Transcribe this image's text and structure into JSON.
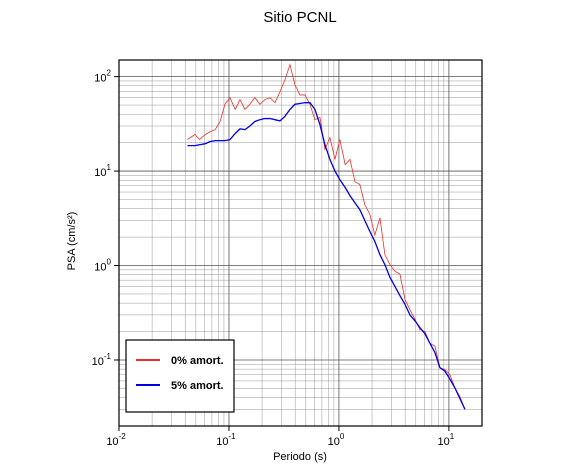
{
  "chart_data": {
    "type": "line",
    "title": "Sitio PCNL",
    "x_label": "Periodo (s)",
    "y_label": "PSA (cm/s²)",
    "log_x": true,
    "log_y": true,
    "grid": true,
    "legend": "lower left",
    "xlim": [
      0.01,
      20
    ],
    "ylim": [
      0.02,
      150
    ],
    "xticks": [
      {
        "value": 0.01,
        "label": "10",
        "exponent": "-2"
      },
      {
        "value": 0.1,
        "label": "10",
        "exponent": "-1"
      },
      {
        "value": 1,
        "label": "10",
        "exponent": "0"
      },
      {
        "value": 10,
        "label": "10",
        "exponent": "1"
      }
    ],
    "yticks": [
      {
        "value": 0.1,
        "label": "10",
        "exponent": "-1"
      },
      {
        "value": 1,
        "label": "10",
        "exponent": "0"
      },
      {
        "value": 10,
        "label": "10",
        "exponent": "1"
      },
      {
        "value": 100,
        "label": "10",
        "exponent": "2"
      }
    ],
    "x": [
      0.042,
      0.049,
      0.054,
      0.061,
      0.067,
      0.075,
      0.083,
      0.092,
      0.102,
      0.114,
      0.126,
      0.14,
      0.155,
      0.172,
      0.191,
      0.212,
      0.236,
      0.262,
      0.291,
      0.323,
      0.359,
      0.398,
      0.442,
      0.491,
      0.545,
      0.605,
      0.672,
      0.746,
      0.828,
      0.92,
      1.02,
      1.14,
      1.26,
      1.4,
      1.55,
      1.72,
      1.91,
      2.12,
      2.36,
      2.62,
      2.91,
      3.23,
      3.59,
      3.98,
      4.42,
      4.91,
      5.45,
      6.05,
      6.72,
      7.46,
      8.28,
      9.2,
      10.2,
      11.4,
      12.6,
      14.0
    ],
    "series": [
      {
        "name": "0% amort.",
        "color": "#e8302b",
        "width": 0.8,
        "values": [
          21.6,
          24.4,
          21.6,
          24.4,
          26,
          27.5,
          33.5,
          51,
          60,
          45,
          57,
          45,
          51,
          60,
          51,
          57,
          60,
          53,
          69,
          93,
          134,
          82,
          64,
          64,
          51,
          35,
          37,
          17,
          22.6,
          13.3,
          21.6,
          11.7,
          13.3,
          7.7,
          7.2,
          4.4,
          3.5,
          2.1,
          3.2,
          1.3,
          1.02,
          0.87,
          0.81,
          0.44,
          0.34,
          0.27,
          0.21,
          0.2,
          0.15,
          0.14,
          0.083,
          0.079,
          0.07,
          0.05,
          0.041,
          0.03
        ]
      },
      {
        "name": "5% amort.",
        "color": "#0000e0",
        "width": 1.3,
        "values": [
          18.6,
          18.6,
          19,
          19.5,
          20.5,
          21,
          21,
          21,
          21.5,
          25,
          28,
          27.5,
          30,
          33.5,
          35,
          36,
          36,
          35,
          34,
          38,
          45,
          51,
          52,
          53,
          53,
          45,
          31,
          19,
          13.3,
          10,
          8.1,
          6.7,
          5.5,
          4.6,
          3.9,
          3.0,
          2.3,
          1.8,
          1.3,
          1.02,
          0.75,
          0.6,
          0.48,
          0.39,
          0.3,
          0.26,
          0.22,
          0.19,
          0.15,
          0.12,
          0.083,
          0.076,
          0.063,
          0.05,
          0.039,
          0.03
        ]
      }
    ]
  }
}
